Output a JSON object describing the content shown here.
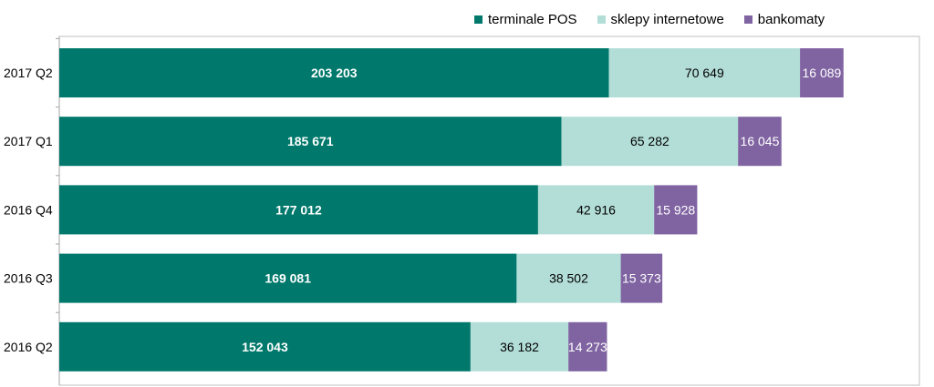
{
  "chart_data": {
    "type": "bar",
    "orientation": "horizontal",
    "stacked": true,
    "categories": [
      "2017 Q2",
      "2017 Q1",
      "2016 Q4",
      "2016 Q3",
      "2016 Q2"
    ],
    "series": [
      {
        "name": "terminale POS",
        "color": "#00786B",
        "label_color": "#ffffff",
        "label_bold": true,
        "values": [
          203203,
          185671,
          177012,
          169081,
          152043
        ],
        "labels": [
          "203 203",
          "185 671",
          "177 012",
          "169 081",
          "152 043"
        ]
      },
      {
        "name": "sklepy internetowe",
        "color": "#B3DED8",
        "label_color": "#000000",
        "label_bold": false,
        "values": [
          70649,
          65282,
          42916,
          38502,
          36182
        ],
        "labels": [
          "70 649",
          "65 282",
          "42 916",
          "38 502",
          "36 182"
        ]
      },
      {
        "name": "bankomaty",
        "color": "#8064A2",
        "label_color": "#ffffff",
        "label_bold": false,
        "values": [
          16089,
          16045,
          15928,
          15373,
          14273
        ],
        "labels": [
          "16 089",
          "16 045",
          "15 928",
          "15 373",
          "14 273"
        ]
      }
    ],
    "xlim": [
      0,
      318000
    ],
    "grid": false,
    "legend_position": "top-right"
  }
}
